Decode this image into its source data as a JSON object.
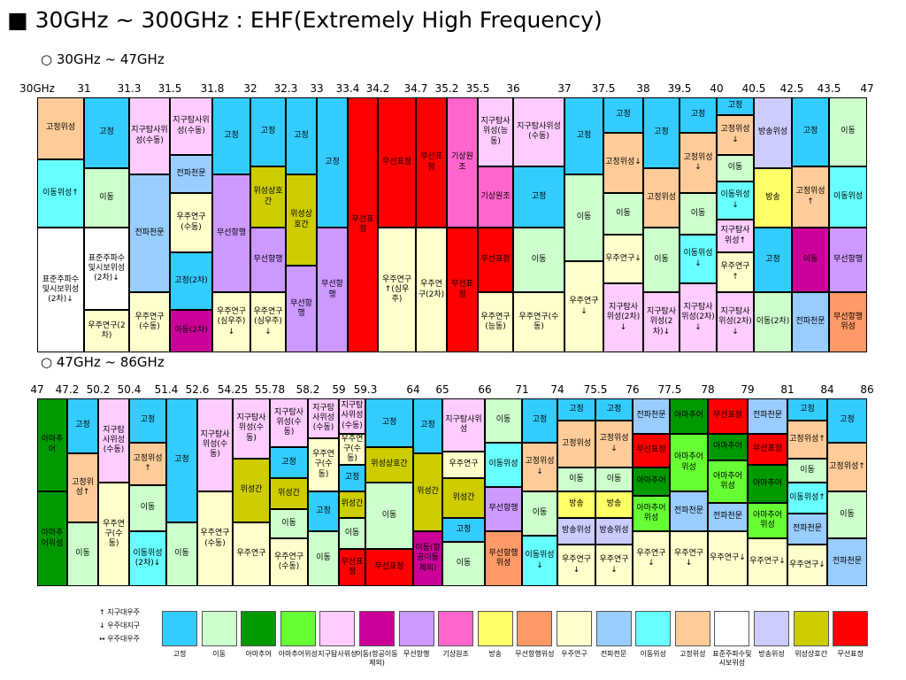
{
  "title": "■ 30GHz ~ 300GHz : EHF(Extremely High Frequency)",
  "sections": [
    {
      "heading": "○ 30GHz ~ 47GHz",
      "frequencies": [
        "30GHz",
        "31",
        "31.3",
        "31.5",
        "31.8",
        "32",
        "32.3",
        "33",
        "33.4",
        "34.2",
        "34.7",
        "35.2",
        "35.5",
        "36",
        "37",
        "37.5",
        "38",
        "39.5",
        "40",
        "40.5",
        "42.5",
        "43.5",
        "47"
      ],
      "columns": [
        [
          [
            "고정위성",
            "고정위성"
          ],
          [
            "이동위성↑",
            "이동위성"
          ],
          [
            "표준주파수및시보위성(2차)↓",
            "표준주파수및시보위성"
          ]
        ],
        [
          [
            "고정",
            "고정"
          ],
          [
            "이동",
            "이동"
          ],
          [
            "표준주파수및시보위성(2차)↓",
            "표준주파수및시보위성"
          ],
          [
            "우주연구(2차)",
            "우주연구"
          ]
        ],
        [
          [
            "지구탐사위성(수동)",
            "지구탐사위성"
          ],
          [
            "전파천문",
            "전파천문"
          ],
          [
            "우주연구(수동)",
            "우주연구"
          ]
        ],
        [
          [
            "지구탐사위성(수동)",
            "지구탐사위성"
          ],
          [
            "전파천문",
            "전파천문"
          ],
          [
            "우주연구(수동)",
            "우주연구"
          ],
          [
            "고정(2차)",
            "고정"
          ],
          [
            "이동(2차)",
            "이동(항공이동제외)"
          ]
        ],
        [
          [
            "고정",
            "고정"
          ],
          [
            "무선항행",
            "무선항행"
          ],
          [
            "우주연구(심우주)↓",
            "우주연구"
          ]
        ],
        [
          [
            "고정",
            "고정"
          ],
          [
            "위성상호간",
            "위성상호간"
          ],
          [
            "무선항행",
            "무선항행"
          ],
          [
            "우주연구(심우주)↓",
            "우주연구"
          ]
        ],
        [
          [
            "고정",
            "고정"
          ],
          [
            "위성상호간",
            "위성상호간"
          ],
          [
            "무선항행",
            "무선항행"
          ]
        ],
        [
          [
            "고정",
            "고정"
          ],
          [
            "무선항행",
            "무선항행"
          ]
        ],
        [
          [
            "무선표정",
            "무선표정"
          ]
        ],
        [
          [
            "무선표정",
            "무선표정"
          ],
          [
            "우주연구↑(심우주)",
            "우주연구"
          ]
        ],
        [
          [
            "무선표정",
            "무선표정"
          ],
          [
            "우주연구(2차)",
            "우주연구"
          ]
        ],
        [
          [
            "기상원조",
            "기상원조"
          ],
          [
            "무선표정",
            "무선표정"
          ]
        ],
        [
          [
            "지구탐사위성(능동)",
            "지구탐사위성"
          ],
          [
            "기상원조",
            "기상원조"
          ],
          [
            "무선표정",
            "무선표정"
          ],
          [
            "우주연구(능동)",
            "우주연구"
          ]
        ],
        [
          [
            "지구탐사위성(수동)",
            "지구탐사위성"
          ],
          [
            "고정",
            "고정"
          ],
          [
            "이동",
            "이동"
          ],
          [
            "우주연구(수동)",
            "우주연구"
          ]
        ],
        [
          [
            "고정",
            "고정"
          ],
          [
            "이동",
            "이동"
          ],
          [
            "우주연구↓",
            "우주연구"
          ]
        ],
        [
          [
            "고정",
            "고정"
          ],
          [
            "고정위성↓",
            "고정위성"
          ],
          [
            "이동",
            "이동"
          ],
          [
            "우주연구↓",
            "우주연구"
          ],
          [
            "지구탐사위성(2차)↓",
            "지구탐사위성"
          ]
        ],
        [
          [
            "고정",
            "고정"
          ],
          [
            "고정위성",
            "고정위성"
          ],
          [
            "이동",
            "이동"
          ],
          [
            "지구탐사위성(2차)↓",
            "지구탐사위성"
          ]
        ],
        [
          [
            "고정",
            "고정"
          ],
          [
            "고정위성↓",
            "고정위성"
          ],
          [
            "이동",
            "이동"
          ],
          [
            "이동위성↓",
            "이동위성"
          ],
          [
            "지구탐사위성(2차)↓",
            "지구탐사위성"
          ]
        ],
        [
          [
            "고정",
            "고정"
          ],
          [
            "고정위성↓",
            "고정위성"
          ],
          [
            "이동",
            "이동"
          ],
          [
            "이동위성↓",
            "이동위성"
          ],
          [
            "지구탐사위성↑",
            "지구탐사위성"
          ],
          [
            "우주연구↑",
            "우주연구"
          ],
          [
            "지구탐사위성(2차)↓",
            "지구탐사위성"
          ]
        ],
        [
          [
            "방송위성",
            "방송위성"
          ],
          [
            "방송",
            "방송"
          ],
          [
            "고정",
            "고정"
          ],
          [
            "이동(2차)",
            "이동"
          ]
        ],
        [
          [
            "고정",
            "고정"
          ],
          [
            "고정위성↑",
            "고정위성"
          ],
          [
            "이동",
            "이동(항공이동제외)"
          ],
          [
            "전파천문",
            "전파천문"
          ]
        ],
        [
          [
            "이동",
            "이동"
          ],
          [
            "이동위성",
            "이동위성"
          ],
          [
            "무선항행",
            "무선항행"
          ],
          [
            "무선항행위성",
            "무선항행위성"
          ]
        ]
      ]
    },
    {
      "heading": "○ 47GHz ~ 86GHz",
      "frequencies": [
        "47",
        "47.2",
        "50.2",
        "50.4",
        "51.4",
        "52.6",
        "54.25",
        "55.78",
        "58.2",
        "59",
        "59.3",
        "64",
        "65",
        "66",
        "71",
        "74",
        "75.5",
        "76",
        "77.5",
        "78",
        "79",
        "81",
        "84",
        "86"
      ],
      "columns": [
        [
          [
            "아마추어",
            "아마추어"
          ],
          [
            "아마추어위성",
            "아마추어"
          ]
        ],
        [
          [
            "고정",
            "고정"
          ],
          [
            "고정위성↑",
            "고정위성"
          ],
          [
            "이동",
            "이동"
          ]
        ],
        [
          [
            "지구탐사위성(수동)",
            "지구탐사위성"
          ],
          [
            "우주연구(수동)",
            "우주연구"
          ]
        ],
        [
          [
            "고정",
            "고정"
          ],
          [
            "고정위성↑",
            "고정위성"
          ],
          [
            "이동",
            "이동"
          ],
          [
            "이동위성(2차)↓",
            "이동위성"
          ]
        ],
        [
          [
            "고정",
            "고정"
          ],
          [
            "이동",
            "이동"
          ]
        ],
        [
          [
            "지구탐사위성(수동)",
            "지구탐사위성"
          ],
          [
            "우주연구(수동)",
            "우주연구"
          ]
        ],
        [
          [
            "지구탐사위성(수동)",
            "지구탐사위성"
          ],
          [
            "위성간",
            "위성상호간"
          ],
          [
            "우주연구",
            "우주연구"
          ]
        ],
        [
          [
            "지구탐사위성(수동)",
            "지구탐사위성"
          ],
          [
            "고정",
            "고정"
          ],
          [
            "위성간",
            "위성상호간"
          ],
          [
            "이동",
            "이동"
          ],
          [
            "우주연구(수동)",
            "우주연구"
          ]
        ],
        [
          [
            "지구탐사위성(수동)",
            "지구탐사위성"
          ],
          [
            "우주연구(수동)",
            "우주연구"
          ],
          [
            "고정",
            "고정"
          ],
          [
            "이동",
            "이동"
          ]
        ],
        [
          [
            "지구탐사위성(수동)",
            "지구탐사위성"
          ],
          [
            "우주연구(수동)",
            "우주연구"
          ],
          [
            "고정",
            "고정"
          ],
          [
            "위성간",
            "위성상호간"
          ],
          [
            "이동",
            "이동"
          ],
          [
            "무선표정",
            "무선표정"
          ]
        ],
        [
          [
            "고정",
            "고정"
          ],
          [
            "위성상호간",
            "위성상호간"
          ],
          [
            "이동",
            "이동"
          ],
          [
            "무선표정",
            "무선표정"
          ]
        ],
        [
          [
            "고정",
            "고정"
          ],
          [
            "위성간",
            "위성상호간"
          ],
          [
            "이동(항공이동제외)",
            "이동(항공이동제외)"
          ]
        ],
        [
          [
            "지구탐사위성",
            "지구탐사위성"
          ],
          [
            "우주연구",
            "우주연구"
          ],
          [
            "위성간",
            "위성상호간"
          ],
          [
            "고정",
            "고정"
          ],
          [
            "이동",
            "이동"
          ]
        ],
        [
          [
            "이동",
            "이동"
          ],
          [
            "이동위성",
            "이동위성"
          ],
          [
            "무선항행",
            "무선항행"
          ],
          [
            "무선항행위성",
            "무선항행위성"
          ]
        ],
        [
          [
            "고정",
            "고정"
          ],
          [
            "고정위성↓",
            "고정위성"
          ],
          [
            "이동",
            "이동"
          ],
          [
            "이동위성↓",
            "이동위성"
          ]
        ],
        [
          [
            "고정",
            "고정"
          ],
          [
            "고정위성",
            "고정위성"
          ],
          [
            "이동",
            "이동"
          ],
          [
            "방송",
            "방송"
          ],
          [
            "방송위성",
            "방송위성"
          ],
          [
            "우주연구↓",
            "우주연구"
          ]
        ],
        [
          [
            "고정",
            "고정"
          ],
          [
            "고정위성↓",
            "고정위성"
          ],
          [
            "이동",
            "이동"
          ],
          [
            "방송",
            "방송"
          ],
          [
            "방송위성",
            "방송위성"
          ],
          [
            "우주연구↓",
            "우주연구"
          ]
        ],
        [
          [
            "전파천문",
            "전파천문"
          ],
          [
            "무선표정",
            "무선표정"
          ],
          [
            "아마추어",
            "아마추어"
          ],
          [
            "아마추어위성",
            "아마추어위성"
          ],
          [
            "우주연구↓",
            "우주연구"
          ]
        ],
        [
          [
            "아마추어",
            "아마추어"
          ],
          [
            "아마추어위성",
            "아마추어위성"
          ],
          [
            "전파천문",
            "전파천문"
          ],
          [
            "우주연구↓",
            "우주연구"
          ]
        ],
        [
          [
            "무선표정",
            "무선표정"
          ],
          [
            "아마추어",
            "아마추어"
          ],
          [
            "아마추어위성",
            "아마추어위성"
          ],
          [
            "전파천문",
            "전파천문"
          ],
          [
            "우주연구↓",
            "우주연구"
          ]
        ],
        [
          [
            "전파천문",
            "전파천문"
          ],
          [
            "무선표정",
            "무선표정"
          ],
          [
            "아마추어",
            "아마추어"
          ],
          [
            "아마추어위성",
            "아마추어위성"
          ],
          [
            "우주연구↓",
            "우주연구"
          ]
        ],
        [
          [
            "고정",
            "고정"
          ],
          [
            "고정위성↑",
            "고정위성"
          ],
          [
            "이동",
            "이동"
          ],
          [
            "이동위성↑",
            "이동위성"
          ],
          [
            "전파천문",
            "전파천문"
          ],
          [
            "우주연구↓",
            "우주연구"
          ]
        ],
        [
          [
            "고정",
            "고정"
          ],
          [
            "고정위성↑",
            "고정위성"
          ],
          [
            "이동",
            "이동"
          ],
          [
            "전파천문",
            "전파천문"
          ]
        ]
      ]
    }
  ],
  "notes": [
    "↑ 지구대우주",
    "↓ 우주대지구",
    "↔ 우주대우주"
  ],
  "legend": [
    {
      "name": "고정",
      "color": "#33ccff"
    },
    {
      "name": "이동",
      "color": "#ccffcc"
    },
    {
      "name": "아마추어",
      "color": "#009900"
    },
    {
      "name": "아마추어위성",
      "color": "#66ff33"
    },
    {
      "name": "지구탐사위성",
      "color": "#ffccff"
    },
    {
      "name": "이동(항공이동제외)",
      "color": "#cc0099"
    },
    {
      "name": "무선항행",
      "color": "#cc99ff"
    },
    {
      "name": "기상원조",
      "color": "#ff66cc"
    },
    {
      "name": "방송",
      "color": "#ffff66"
    },
    {
      "name": "무선항행위성",
      "color": "#ff9966"
    },
    {
      "name": "우주연구",
      "color": "#ffffcc"
    },
    {
      "name": "전파천문",
      "color": "#99ccff"
    },
    {
      "name": "이동위성",
      "color": "#66ffff"
    },
    {
      "name": "고정위성",
      "color": "#ffcc99"
    },
    {
      "name": "표준주파수및시보위성",
      "color": "#ffffff"
    },
    {
      "name": "방송위성",
      "color": "#ccccff"
    },
    {
      "name": "위성상호간",
      "color": "#cccc00"
    },
    {
      "name": "무선표정",
      "color": "#ff0000"
    }
  ]
}
